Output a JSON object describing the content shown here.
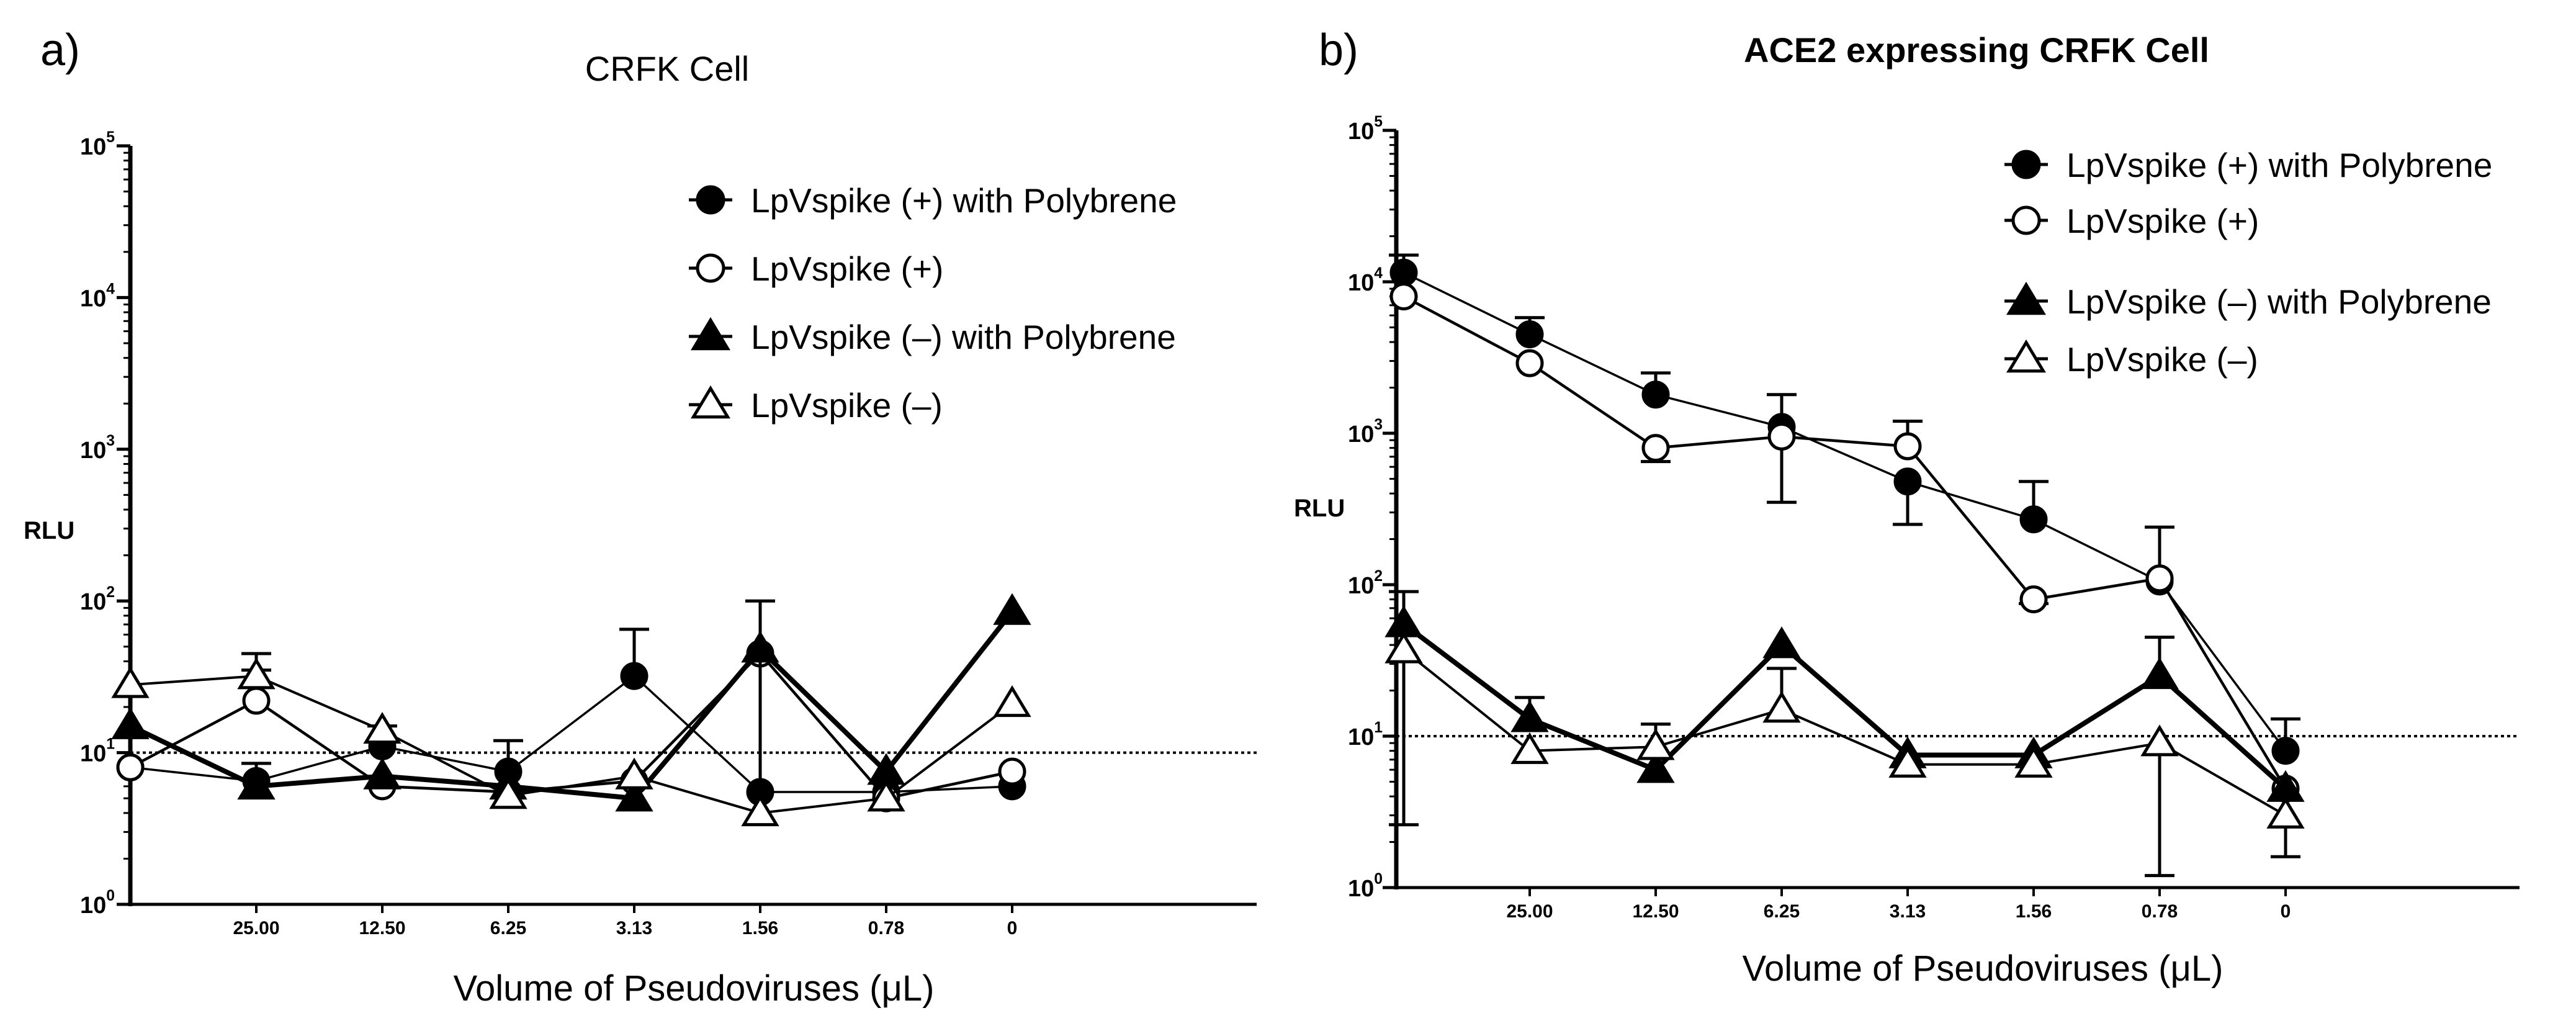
{
  "chart_data": [
    {
      "panel_label": "a)",
      "type": "line",
      "title": "CRFK Cell",
      "title_bold": false,
      "xlabel": "Volume of Pseudoviruses (μL)",
      "ylabel": "RLU",
      "yscale": "log",
      "ylim": [
        1,
        100000
      ],
      "y_ticks": [
        {
          "value": 1,
          "base": "10",
          "exp": "0"
        },
        {
          "value": 10,
          "base": "10",
          "exp": "1"
        },
        {
          "value": 100,
          "base": "10",
          "exp": "2"
        },
        {
          "value": 1000,
          "base": "10",
          "exp": "3"
        },
        {
          "value": 10000,
          "base": "10",
          "exp": "4"
        },
        {
          "value": 100000,
          "base": "10",
          "exp": "5"
        }
      ],
      "x_tick_labels": [
        "",
        "25.00",
        "12.50",
        "6.25",
        "3.13",
        "1.56",
        "0.78",
        "0"
      ],
      "threshold": 10,
      "series": [
        {
          "name": "LpVspike (+) with Polybrene",
          "marker": "circle-filled",
          "values": [
            8,
            6.5,
            11,
            7.5,
            32,
            5.5,
            5.5,
            6
          ],
          "err": [
            null,
            8.5,
            15,
            null,
            65,
            null,
            null,
            null
          ]
        },
        {
          "name": "LpVspike (+)",
          "marker": "circle-open",
          "values": [
            8,
            22,
            6,
            5.5,
            6.5,
            45,
            5,
            7.5
          ],
          "err": [
            null,
            35,
            null,
            null,
            null,
            null,
            null,
            null
          ]
        },
        {
          "name": "LpVspike (–) with Polybrene",
          "marker": "triangle-filled",
          "values": [
            15,
            6,
            7,
            6,
            5,
            48,
            7.5,
            85
          ],
          "err": [
            null,
            null,
            null,
            null,
            null,
            null,
            null,
            null
          ]
        },
        {
          "name": "LpVspike (–)",
          "marker": "triangle-open",
          "values": [
            28,
            32,
            14,
            5.2,
            7,
            4,
            5,
            21
          ],
          "err": [
            null,
            45,
            null,
            12,
            null,
            100,
            null,
            null
          ]
        }
      ]
    },
    {
      "panel_label": "b)",
      "type": "line",
      "title": "ACE2 expressing CRFK Cell",
      "title_bold": true,
      "xlabel": "Volume of Pseudoviruses (μL)",
      "ylabel": "RLU",
      "yscale": "log",
      "ylim": [
        1,
        100000
      ],
      "y_ticks": [
        {
          "value": 1,
          "base": "10",
          "exp": "0"
        },
        {
          "value": 10,
          "base": "10",
          "exp": "1"
        },
        {
          "value": 100,
          "base": "10",
          "exp": "2"
        },
        {
          "value": 1000,
          "base": "10",
          "exp": "3"
        },
        {
          "value": 10000,
          "base": "10",
          "exp": "4"
        },
        {
          "value": 100000,
          "base": "10",
          "exp": "5"
        }
      ],
      "x_tick_labels": [
        "",
        "25.00",
        "12.50",
        "6.25",
        "3.13",
        "1.56",
        "0.78",
        "0"
      ],
      "threshold": 10,
      "series": [
        {
          "name": "LpVspike (+) with Polybrene",
          "marker": "circle-filled",
          "values": [
            11500,
            4500,
            1800,
            1100,
            480,
            270,
            105,
            8
          ],
          "err": [
            15000,
            5800,
            2500,
            1800,
            250,
            480,
            240,
            13
          ]
        },
        {
          "name": "LpVspike (+)",
          "marker": "circle-open",
          "values": [
            8000,
            2900,
            800,
            950,
            820,
            80,
            110,
            4.5
          ],
          "err": [
            null,
            null,
            650,
            350,
            1200,
            75,
            null,
            null
          ]
        },
        {
          "name": "LpVspike (–) with Polybrene",
          "marker": "triangle-filled",
          "values": [
            55,
            13,
            6,
            40,
            7.5,
            7.5,
            25,
            4.5
          ],
          "err": [
            90,
            18,
            12,
            null,
            null,
            null,
            45,
            null
          ]
        },
        {
          "name": "LpVspike (–)",
          "marker": "triangle-open",
          "values": [
            37,
            8,
            8.5,
            15,
            6.5,
            6.5,
            9,
            3
          ],
          "err": [
            2.6,
            null,
            null,
            28,
            null,
            null,
            1.2,
            1.6
          ]
        }
      ]
    }
  ]
}
